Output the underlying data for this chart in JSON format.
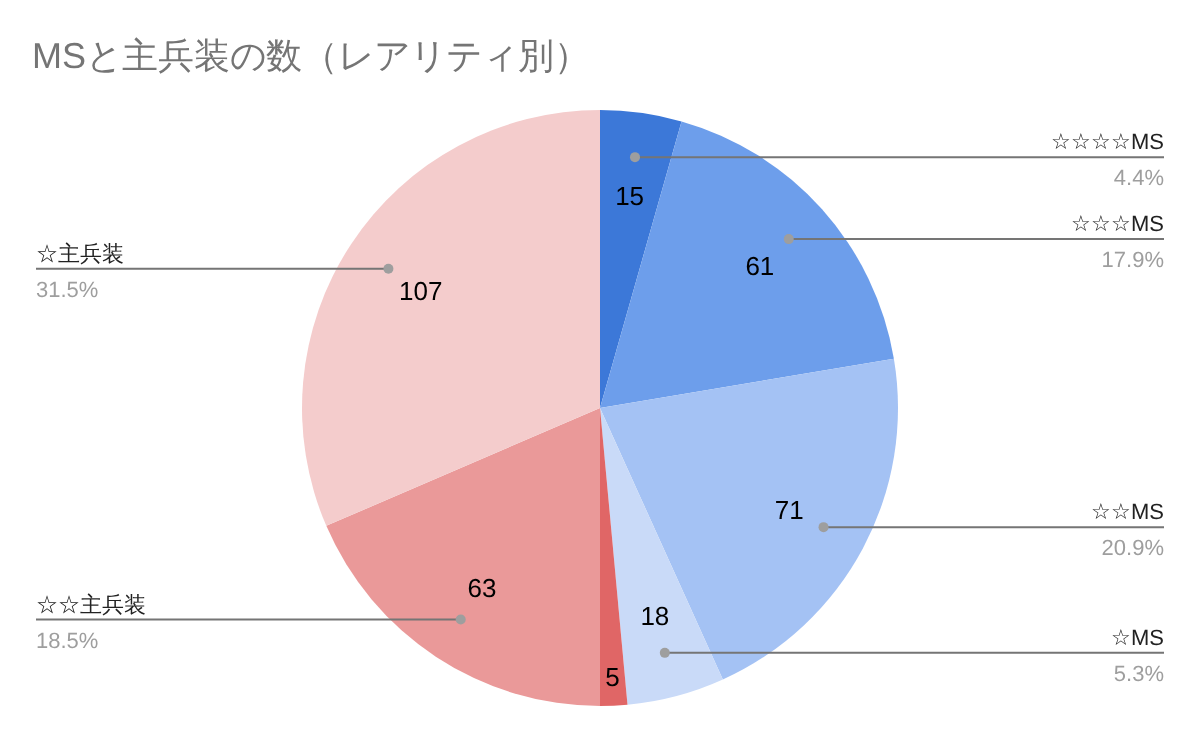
{
  "chart_data": {
    "type": "pie",
    "title": "MSと主兵装の数（レアリティ別）",
    "categories": [
      "☆☆☆☆MS",
      "☆☆☆MS",
      "☆☆MS",
      "☆MS",
      null,
      "☆☆主兵装",
      "☆主兵装"
    ],
    "values": [
      15,
      61,
      71,
      18,
      5,
      63,
      107
    ],
    "colors": [
      "#3c78d8",
      "#6d9eeb",
      "#a4c2f4",
      "#c9daf8",
      "#e06666",
      "#ea9999",
      "#f4cccc"
    ],
    "annotations": [
      "4.4%",
      "17.9%",
      "20.9%",
      "5.3%",
      "18.5%",
      "31.5%"
    ],
    "data_labels": true
  }
}
